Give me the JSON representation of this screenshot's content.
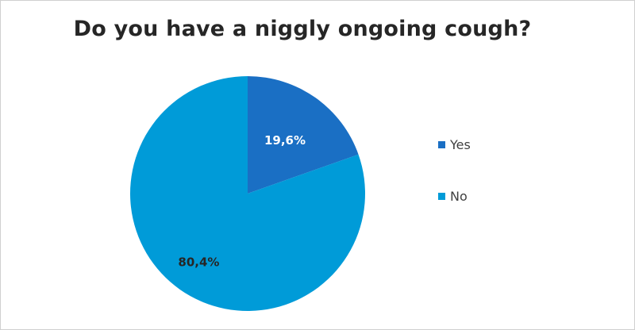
{
  "chart_data": {
    "type": "pie",
    "title": "Do you have a niggly ongoing cough?",
    "categories": [
      "Yes",
      "No"
    ],
    "values": [
      19.6,
      80.4
    ],
    "labels": [
      "19,6%",
      "80,4%"
    ],
    "colors": [
      "#1a6fc4",
      "#009bd8"
    ],
    "label_colors": [
      "#ffffff",
      "#262626"
    ],
    "legend_position": "right"
  }
}
